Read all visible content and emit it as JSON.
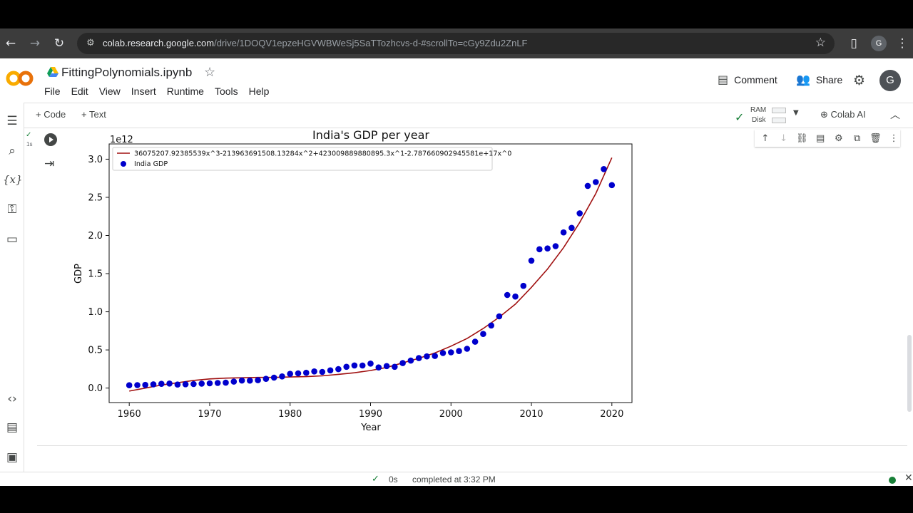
{
  "browser": {
    "url_host": "colab.research.google.com",
    "url_path": "/drive/1DOQV1epzeHGVWBWeSj5SaTTozhcvs-d-#scrollTo=cGy9Zdu2ZnLF",
    "profile_initial": "G"
  },
  "header": {
    "notebook_title": "FittingPolynomials.ipynb",
    "menu": [
      "File",
      "Edit",
      "View",
      "Insert",
      "Runtime",
      "Tools",
      "Help"
    ],
    "comment_label": "Comment",
    "share_label": "Share",
    "avatar_initial": "G"
  },
  "toolbar": {
    "code_label": "+ Code",
    "text_label": "+ Text",
    "ram_label": "RAM",
    "disk_label": "Disk",
    "colab_ai_label": "Colab AI"
  },
  "cell": {
    "exec_time": "1s"
  },
  "status": {
    "duration": "0s",
    "message": "completed at 3:32 PM"
  },
  "icons": {
    "back": "arrow-left-icon",
    "forward": "arrow-right-icon",
    "reload": "reload-icon",
    "bookmark": "star-icon",
    "sidepanel": "side-panel-icon",
    "more": "more-vert-icon"
  },
  "chart_data": {
    "type": "scatter",
    "title": "India's GDP per year",
    "xlabel": "Year",
    "ylabel": "GDP",
    "y_multiplier": "1e12",
    "xlim": [
      1957.5,
      2022.5
    ],
    "ylim": [
      -0.19,
      3.2
    ],
    "x_ticks": [
      1960,
      1970,
      1980,
      1990,
      2000,
      2010,
      2020
    ],
    "y_ticks": [
      0.0,
      0.5,
      1.0,
      1.5,
      2.0,
      2.5,
      3.0
    ],
    "x_tick_labels": [
      "1960",
      "1970",
      "1980",
      "1990",
      "2000",
      "2010",
      "2020"
    ],
    "y_tick_labels": [
      "0.0",
      "0.5",
      "1.0",
      "1.5",
      "2.0",
      "2.5",
      "3.0"
    ],
    "legend_position": "top-left",
    "series": [
      {
        "name": "36075207.92385539x^3-213963691508.13284x^2+423009889880895.3x^1-2.787660902945581e+17x^0",
        "kind": "line",
        "color": "#a01010",
        "x": [
          1960,
          1962,
          1964,
          1966,
          1968,
          1970,
          1972,
          1974,
          1976,
          1978,
          1980,
          1982,
          1984,
          1986,
          1988,
          1990,
          1992,
          1994,
          1996,
          1998,
          2000,
          2002,
          2004,
          2006,
          2008,
          2010,
          2012,
          2014,
          2016,
          2018,
          2020
        ],
        "y": [
          -0.04,
          0.0,
          0.04,
          0.07,
          0.1,
          0.12,
          0.13,
          0.135,
          0.14,
          0.14,
          0.145,
          0.15,
          0.16,
          0.18,
          0.2,
          0.23,
          0.27,
          0.33,
          0.39,
          0.46,
          0.55,
          0.65,
          0.78,
          0.93,
          1.1,
          1.32,
          1.56,
          1.84,
          2.17,
          2.55,
          3.02
        ]
      },
      {
        "name": "India GDP",
        "kind": "scatter",
        "color": "#0000cc",
        "x": [
          1960,
          1961,
          1962,
          1963,
          1964,
          1965,
          1966,
          1967,
          1968,
          1969,
          1970,
          1971,
          1972,
          1973,
          1974,
          1975,
          1976,
          1977,
          1978,
          1979,
          1980,
          1981,
          1982,
          1983,
          1984,
          1985,
          1986,
          1987,
          1988,
          1989,
          1990,
          1991,
          1992,
          1993,
          1994,
          1995,
          1996,
          1997,
          1998,
          1999,
          2000,
          2001,
          2002,
          2003,
          2004,
          2005,
          2006,
          2007,
          2008,
          2009,
          2010,
          2011,
          2012,
          2013,
          2014,
          2015,
          2016,
          2017,
          2018,
          2019,
          2020
        ],
        "y": [
          0.037,
          0.039,
          0.042,
          0.049,
          0.056,
          0.059,
          0.046,
          0.05,
          0.053,
          0.058,
          0.062,
          0.067,
          0.071,
          0.085,
          0.099,
          0.098,
          0.103,
          0.121,
          0.137,
          0.153,
          0.186,
          0.193,
          0.2,
          0.218,
          0.212,
          0.232,
          0.248,
          0.279,
          0.297,
          0.296,
          0.321,
          0.27,
          0.288,
          0.279,
          0.327,
          0.36,
          0.393,
          0.415,
          0.421,
          0.459,
          0.468,
          0.485,
          0.515,
          0.608,
          0.709,
          0.82,
          0.94,
          1.22,
          1.2,
          1.34,
          1.67,
          1.82,
          1.83,
          1.86,
          2.04,
          2.1,
          2.29,
          2.65,
          2.7,
          2.87,
          2.66
        ]
      }
    ]
  }
}
